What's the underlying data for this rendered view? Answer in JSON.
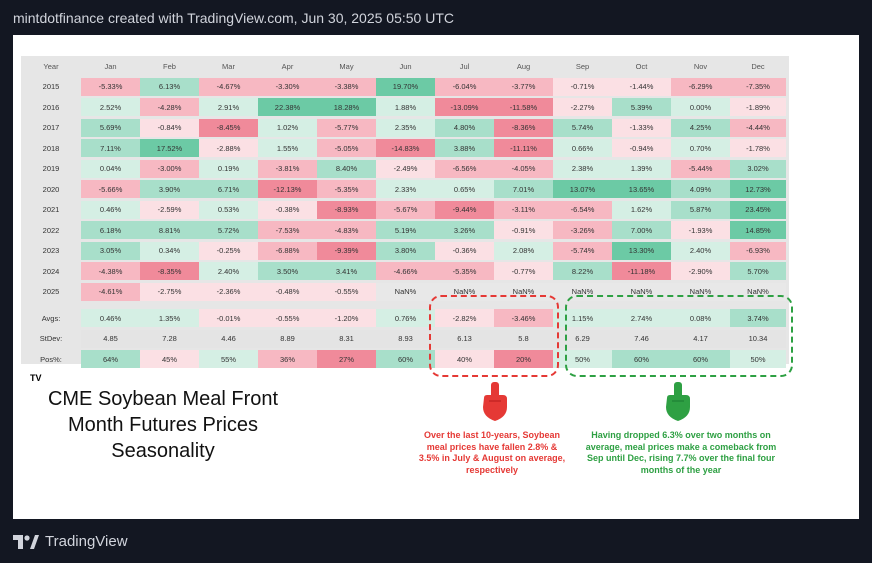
{
  "header": {
    "text": "mintdotfinance created with TradingView.com, Jun 30, 2025 05:50 UTC"
  },
  "footer": {
    "brand": "TradingView",
    "logo_icon": "tradingview-logo-icon"
  },
  "colors": {
    "green_strong": "#6ccaa5",
    "green_mid": "#a8dfca",
    "green_light": "#d5efe4",
    "red_strong": "#f08a9a",
    "red_mid": "#f7b8c2",
    "red_light": "#fbe0e4",
    "red_dash": "#e53935",
    "green_dash": "#2ea043"
  },
  "table": {
    "corner_label": "Year",
    "months": [
      "Jan",
      "Feb",
      "Mar",
      "Apr",
      "May",
      "Jun",
      "Jul",
      "Aug",
      "Sep",
      "Oct",
      "Nov",
      "Dec"
    ],
    "years": [
      {
        "year": "2015",
        "values": [
          "-5.33%",
          "6.13%",
          "-4.67%",
          "-3.30%",
          "-3.38%",
          "19.70%",
          "-6.04%",
          "-3.77%",
          "-0.71%",
          "-1.44%",
          "-6.29%",
          "-7.35%"
        ]
      },
      {
        "year": "2016",
        "values": [
          "2.52%",
          "-4.28%",
          "2.91%",
          "22.38%",
          "18.28%",
          "1.88%",
          "-13.09%",
          "-11.58%",
          "-2.27%",
          "5.39%",
          "0.00%",
          "-1.89%"
        ]
      },
      {
        "year": "2017",
        "values": [
          "5.69%",
          "-0.84%",
          "-8.45%",
          "1.02%",
          "-5.77%",
          "2.35%",
          "4.80%",
          "-8.36%",
          "5.74%",
          "-1.33%",
          "4.25%",
          "-4.44%"
        ]
      },
      {
        "year": "2018",
        "values": [
          "7.11%",
          "17.52%",
          "-2.88%",
          "1.55%",
          "-5.05%",
          "-14.83%",
          "3.88%",
          "-11.11%",
          "0.66%",
          "-0.94%",
          "0.70%",
          "-1.78%"
        ]
      },
      {
        "year": "2019",
        "values": [
          "0.04%",
          "-3.00%",
          "0.19%",
          "-3.81%",
          "8.40%",
          "-2.49%",
          "-6.56%",
          "-4.05%",
          "2.38%",
          "1.39%",
          "-5.44%",
          "3.02%"
        ]
      },
      {
        "year": "2020",
        "values": [
          "-5.66%",
          "3.90%",
          "6.71%",
          "-12.13%",
          "-5.35%",
          "2.33%",
          "0.65%",
          "7.01%",
          "13.07%",
          "13.65%",
          "4.09%",
          "12.73%"
        ]
      },
      {
        "year": "2021",
        "values": [
          "0.46%",
          "-2.59%",
          "0.53%",
          "-0.38%",
          "-8.93%",
          "-5.67%",
          "-9.44%",
          "-3.11%",
          "-6.54%",
          "1.62%",
          "5.87%",
          "23.45%"
        ]
      },
      {
        "year": "2022",
        "values": [
          "6.18%",
          "8.81%",
          "5.72%",
          "-7.53%",
          "-4.83%",
          "5.19%",
          "3.26%",
          "-0.91%",
          "-3.26%",
          "7.00%",
          "-1.93%",
          "14.85%"
        ]
      },
      {
        "year": "2023",
        "values": [
          "3.05%",
          "0.34%",
          "-0.25%",
          "-6.88%",
          "-9.39%",
          "3.80%",
          "-0.36%",
          "2.08%",
          "-5.74%",
          "13.30%",
          "2.40%",
          "-6.93%"
        ]
      },
      {
        "year": "2024",
        "values": [
          "-4.38%",
          "-8.35%",
          "2.40%",
          "3.50%",
          "3.41%",
          "-4.66%",
          "-5.35%",
          "-0.77%",
          "8.22%",
          "-11.18%",
          "-2.90%",
          "5.70%"
        ]
      },
      {
        "year": "2025",
        "values": [
          "-4.61%",
          "-2.75%",
          "-2.36%",
          "-0.48%",
          "-0.55%",
          "NaN%",
          "NaN%",
          "NaN%",
          "NaN%",
          "NaN%",
          "NaN%",
          "NaN%"
        ]
      }
    ],
    "stats": [
      {
        "label": "Avgs:",
        "values": [
          "0.46%",
          "1.35%",
          "-0.01%",
          "-0.55%",
          "-1.20%",
          "0.76%",
          "-2.82%",
          "-3.46%",
          "1.15%",
          "2.74%",
          "0.08%",
          "3.74%"
        ]
      },
      {
        "label": "StDev:",
        "values": [
          "4.85",
          "7.28",
          "4.46",
          "8.89",
          "8.31",
          "8.93",
          "6.13",
          "5.8",
          "6.29",
          "7.46",
          "4.17",
          "10.34"
        ]
      },
      {
        "label": "Pos%:",
        "values": [
          "64%",
          "45%",
          "55%",
          "36%",
          "27%",
          "60%",
          "40%",
          "20%",
          "50%",
          "60%",
          "60%",
          "50%"
        ]
      }
    ],
    "small_logo": "TV"
  },
  "title": {
    "lines": [
      "CME Soybean Meal Front",
      "Month Futures Prices",
      "Seasonality"
    ]
  },
  "notes": {
    "red_icon": "pointing-down-hand-icon",
    "green_icon": "pointing-down-hand-icon",
    "red": "Over the last 10-years, Soybean meal prices have fallen 2.8% & 3.5% in July & August on average, respectively",
    "green": "Having dropped 6.3% over two months on average, meal prices make a comeback from Sep until Dec, rising 7.7% over the final four months of the year"
  }
}
